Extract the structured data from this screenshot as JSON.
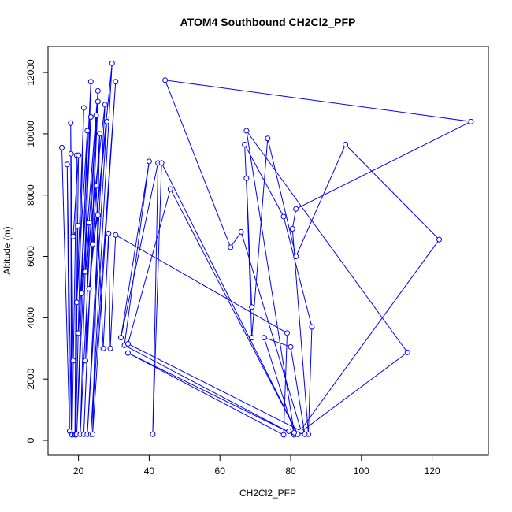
{
  "chart_data": {
    "type": "line",
    "title": "ATOM4 Southbound CH2Cl2_PFP",
    "xlabel": "CH2Cl2_PFP",
    "ylabel": "Altitude (m)",
    "color": "#0000ff",
    "marker": "open-circle",
    "x": [
      15.3,
      17.5,
      16.8,
      18,
      17.8,
      18.5,
      17.9,
      18.2,
      19.5,
      19,
      20,
      18.5,
      19.8,
      19.2,
      21.5,
      19.5,
      22.5,
      19.5,
      23.5,
      20,
      23.5,
      20.5,
      25,
      21,
      25.5,
      21.5,
      25.5,
      22,
      27.5,
      22.5,
      28,
      23,
      29.5,
      23.5,
      30.5,
      24,
      26,
      22,
      23,
      25.5,
      24,
      25,
      27,
      28.5,
      29,
      30.5,
      79,
      78,
      34,
      81,
      33,
      40,
      32,
      42.5,
      41,
      43.5,
      82,
      46,
      34,
      83,
      66,
      63,
      44.5,
      131,
      81.5,
      80.5,
      85,
      86,
      78,
      67,
      69,
      67.5,
      69,
      73.5,
      81.5,
      95.5,
      122,
      82,
      113,
      67.5,
      81,
      72.5,
      80,
      84,
      79.5
    ],
    "values": [
      9550,
      300,
      9000,
      200,
      10350,
      2600,
      9350,
      180,
      9300,
      200,
      9300,
      6650,
      7000,
      180,
      10850,
      4500,
      10100,
      200,
      10550,
      3500,
      11700,
      200,
      10600,
      4800,
      11400,
      200,
      11050,
      5500,
      10950,
      200,
      10400,
      4950,
      12300,
      200,
      11700,
      200,
      10000,
      2600,
      7100,
      7350,
      6400,
      8300,
      3000,
      6750,
      3000,
      6700,
      3500,
      180,
      2850,
      180,
      3100,
      9100,
      3350,
      9050,
      200,
      9050,
      200,
      8200,
      3150,
      300,
      6800,
      6300,
      11750,
      10400,
      7550,
      6900,
      200,
      3700,
      7300,
      9650,
      4350,
      8550,
      3350,
      9850,
      6000,
      9650,
      6550,
      200,
      2870,
      10100,
      250,
      3350,
      3050,
      200,
      300
    ],
    "xlim": [
      11.4,
      135.9
    ],
    "ylim": [
      -488,
      12850
    ],
    "xticks": [
      20,
      40,
      60,
      80,
      100,
      120
    ],
    "yticks": [
      0,
      2000,
      4000,
      6000,
      8000,
      10000,
      12000
    ]
  }
}
